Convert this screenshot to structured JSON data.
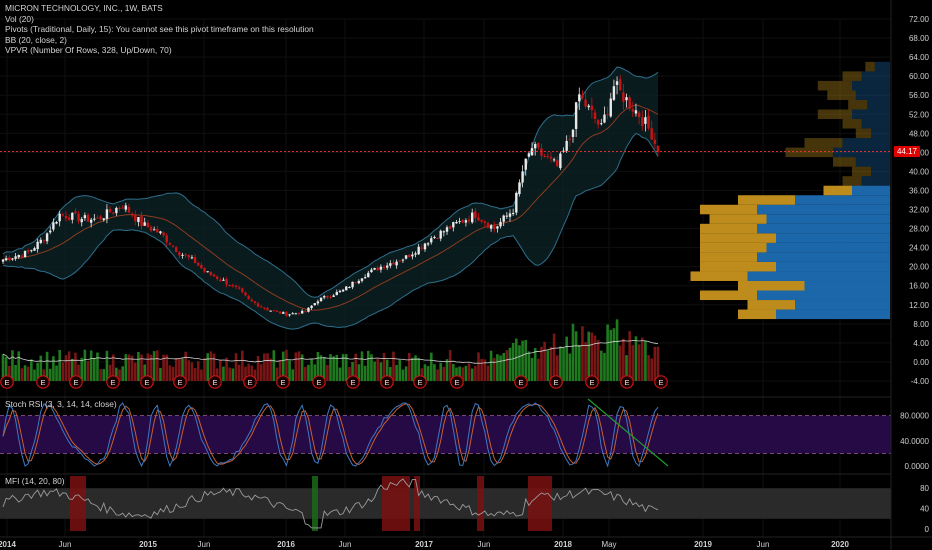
{
  "legend": {
    "symbol": "MICRON TECHNOLOGY, INC., 1W, BATS",
    "indicators": [
      "Vol (20)",
      "Pivots (Traditional, Daily, 15): You cannot see this pivot timeframe on this resolution",
      "BB (20, close, 2)",
      "VPVR (Number Of Rows, 328, Up/Down, 70)"
    ]
  },
  "last_price_label": "44.17",
  "colors": {
    "background": "#000000",
    "up": "#e8e8e8",
    "down": "#c81414",
    "bb_line": "#2e6f8c",
    "bb_fill": "#0d2226",
    "basis": "#8a3b1e",
    "vol_up": "#1f7a1f",
    "vol_down": "#7a1616",
    "vpvr_up": "#1d6db2",
    "vpvr_down": "#c8941e",
    "rsi_band": "#2a0b4d",
    "stoch_k": "#3d79c4",
    "stoch_d": "#c5602e",
    "mfi_line": "#9a9a9a",
    "mfi_band": "#2a2a2a",
    "mfi_hl": "#7a1010",
    "trend": "#1d9d2e",
    "price_line": "#ff3030",
    "earnings": "#c81414"
  },
  "panes": {
    "stoch": {
      "label": "Stoch RSI (3, 3, 14, 14, close)",
      "ticks": [
        "80.0000",
        "40.0000",
        "0.0000"
      ]
    },
    "mfi": {
      "label": "MFI (14, 20, 80)",
      "ticks": [
        "80",
        "40",
        "0"
      ]
    }
  },
  "earnings_marker": "E",
  "chart_data": {
    "type": "candlestick",
    "title": "MICRON TECHNOLOGY, INC., 1W, BATS",
    "x_labels": [
      "2014",
      "Jun",
      "2015",
      "Jun",
      "2016",
      "Jun",
      "2017",
      "Jun",
      "2018",
      "May",
      "2019",
      "Jun",
      "2020"
    ],
    "y_ticks": [
      "72.00",
      "68.00",
      "64.00",
      "60.00",
      "56.00",
      "52.00",
      "48.00",
      "44.00",
      "40.00",
      "36.00",
      "32.00",
      "28.00",
      "24.00",
      "20.00",
      "16.00",
      "12.00",
      "8.00",
      "4.00",
      "0.00",
      "-4.00"
    ],
    "y_range": [
      -6,
      74
    ],
    "last_price": 44.17,
    "earnings_count": 18,
    "close_keypoints": [
      {
        "w": 0,
        "c": 21.5
      },
      {
        "w": 8,
        "c": 23
      },
      {
        "w": 13,
        "c": 26
      },
      {
        "w": 18,
        "c": 31
      },
      {
        "w": 26,
        "c": 30
      },
      {
        "w": 30,
        "c": 30
      },
      {
        "w": 38,
        "c": 33
      },
      {
        "w": 44,
        "c": 29
      },
      {
        "w": 50,
        "c": 27
      },
      {
        "w": 56,
        "c": 23
      },
      {
        "w": 61,
        "c": 21
      },
      {
        "w": 64,
        "c": 19
      },
      {
        "w": 70,
        "c": 17
      },
      {
        "w": 75,
        "c": 15
      },
      {
        "w": 78,
        "c": 13
      },
      {
        "w": 84,
        "c": 11
      },
      {
        "w": 90,
        "c": 10
      },
      {
        "w": 96,
        "c": 10.5
      },
      {
        "w": 100,
        "c": 13
      },
      {
        "w": 108,
        "c": 15
      },
      {
        "w": 114,
        "c": 18
      },
      {
        "w": 120,
        "c": 20
      },
      {
        "w": 128,
        "c": 22
      },
      {
        "w": 136,
        "c": 26
      },
      {
        "w": 144,
        "c": 29
      },
      {
        "w": 150,
        "c": 31
      },
      {
        "w": 156,
        "c": 28
      },
      {
        "w": 162,
        "c": 32
      },
      {
        "w": 165,
        "c": 40
      },
      {
        "w": 168,
        "c": 45
      },
      {
        "w": 172,
        "c": 43
      },
      {
        "w": 176,
        "c": 41
      },
      {
        "w": 180,
        "c": 47
      },
      {
        "w": 183,
        "c": 56
      },
      {
        "w": 187,
        "c": 52
      },
      {
        "w": 190,
        "c": 49
      },
      {
        "w": 194,
        "c": 58
      },
      {
        "w": 198,
        "c": 55
      },
      {
        "w": 202,
        "c": 52
      },
      {
        "w": 206,
        "c": 48
      },
      {
        "w": 208,
        "c": 44.17
      }
    ],
    "bollinger": {
      "period": 20,
      "stdev": 2
    },
    "volume": {
      "period": 20
    },
    "vpvr": {
      "type": "horizontal-volume-profile",
      "rows": [
        {
          "p": 10,
          "up": 0.6,
          "dn": 0.2
        },
        {
          "p": 12,
          "up": 0.5,
          "dn": 0.25
        },
        {
          "p": 14,
          "up": 0.7,
          "dn": 0.3
        },
        {
          "p": 16,
          "up": 0.45,
          "dn": 0.35
        },
        {
          "p": 18,
          "up": 0.75,
          "dn": 0.3
        },
        {
          "p": 20,
          "up": 0.6,
          "dn": 0.4
        },
        {
          "p": 22,
          "up": 0.7,
          "dn": 0.3
        },
        {
          "p": 24,
          "up": 0.65,
          "dn": 0.35
        },
        {
          "p": 26,
          "up": 0.6,
          "dn": 0.4
        },
        {
          "p": 28,
          "up": 0.7,
          "dn": 0.3
        },
        {
          "p": 30,
          "up": 0.65,
          "dn": 0.3
        },
        {
          "p": 32,
          "up": 0.7,
          "dn": 0.3
        },
        {
          "p": 34,
          "up": 0.5,
          "dn": 0.3
        },
        {
          "p": 36,
          "up": 0.2,
          "dn": 0.15
        },
        {
          "p": 38,
          "up": 0.15,
          "dn": 0.1
        },
        {
          "p": 40,
          "up": 0.1,
          "dn": 0.1
        },
        {
          "p": 42,
          "up": 0.18,
          "dn": 0.12
        },
        {
          "p": 44,
          "up": 0.3,
          "dn": 0.25
        },
        {
          "p": 46,
          "up": 0.25,
          "dn": 0.2
        },
        {
          "p": 48,
          "up": 0.1,
          "dn": 0.08
        },
        {
          "p": 50,
          "up": 0.15,
          "dn": 0.1
        },
        {
          "p": 52,
          "up": 0.2,
          "dn": 0.18
        },
        {
          "p": 54,
          "up": 0.12,
          "dn": 0.1
        },
        {
          "p": 56,
          "up": 0.18,
          "dn": 0.15
        },
        {
          "p": 58,
          "up": 0.2,
          "dn": 0.18
        },
        {
          "p": 60,
          "up": 0.15,
          "dn": 0.1
        },
        {
          "p": 62,
          "up": 0.08,
          "dn": 0.05
        }
      ]
    }
  }
}
